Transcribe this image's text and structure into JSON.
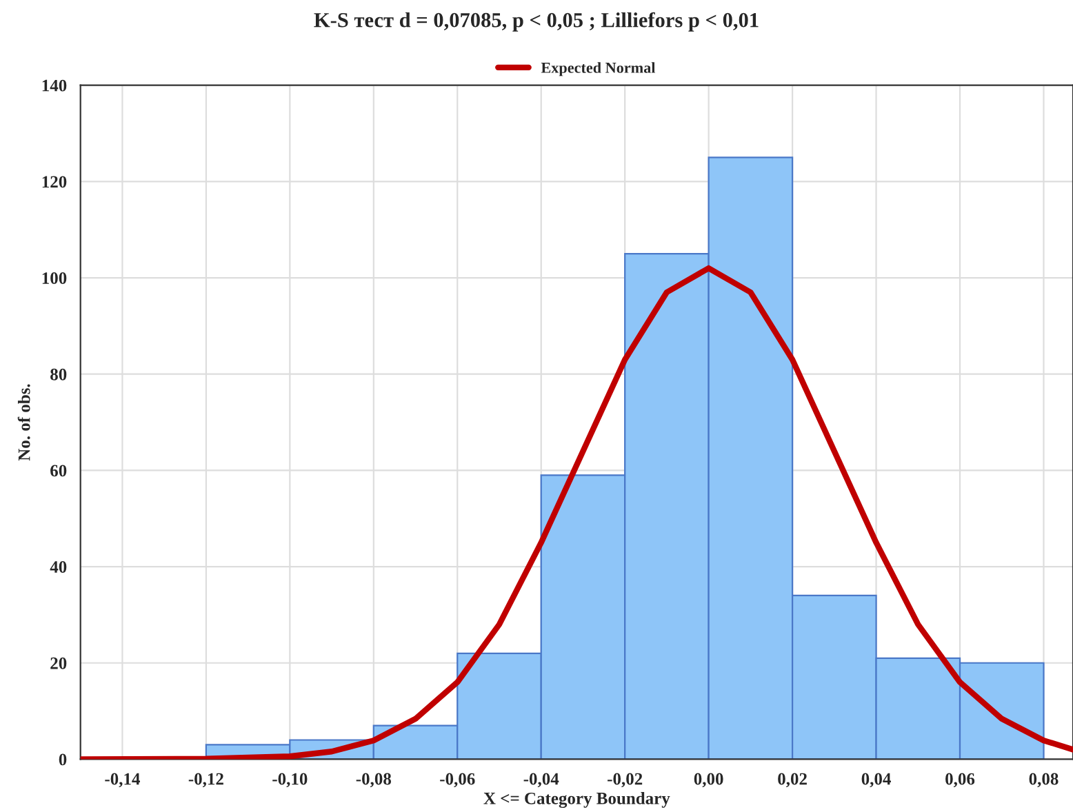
{
  "chart_data": {
    "type": "histogram",
    "title": "K-S тест d = 0,07085, p < 0,05 ; Lilliefors p < 0,01",
    "xlabel": "X <= Category Boundary",
    "ylabel": "No. of obs.",
    "bins": [
      -0.12,
      -0.1,
      -0.08,
      -0.06,
      -0.04,
      -0.02,
      0.0,
      0.02,
      0.04,
      0.06,
      0.08
    ],
    "values": [
      3,
      4,
      7,
      22,
      59,
      105,
      125,
      34,
      21,
      20
    ],
    "color": "#8ec5f8",
    "series": [
      {
        "type": "line",
        "name": "Expected Normal",
        "color": "#c00000",
        "x": [
          -0.15,
          -0.12,
          -0.1,
          -0.09,
          -0.08,
          -0.07,
          -0.06,
          -0.05,
          -0.04,
          -0.03,
          -0.02,
          -0.01,
          0.0,
          0.01,
          0.02,
          0.03,
          0.04,
          0.05,
          0.06,
          0.07,
          0.08,
          0.087
        ],
        "values": [
          0,
          0.1,
          0.6,
          1.6,
          3.9,
          8.4,
          16,
          28,
          45,
          64,
          83,
          97,
          102,
          97,
          83,
          64,
          45,
          28,
          16,
          8.4,
          3.9,
          2
        ]
      }
    ],
    "xlim": [
      -0.15,
      0.087
    ],
    "ylim": [
      0,
      140
    ],
    "xticks": [
      {
        "value": -0.14,
        "label": "-0,14"
      },
      {
        "value": -0.12,
        "label": "-0,12"
      },
      {
        "value": -0.1,
        "label": "-0,10"
      },
      {
        "value": -0.08,
        "label": "-0,08"
      },
      {
        "value": -0.06,
        "label": "-0,06"
      },
      {
        "value": -0.04,
        "label": "-0,04"
      },
      {
        "value": -0.02,
        "label": "-0,02"
      },
      {
        "value": 0.0,
        "label": "0,00"
      },
      {
        "value": 0.02,
        "label": "0,02"
      },
      {
        "value": 0.04,
        "label": "0,04"
      },
      {
        "value": 0.06,
        "label": "0,06"
      },
      {
        "value": 0.08,
        "label": "0,08"
      }
    ],
    "yticks": [
      0,
      20,
      40,
      60,
      80,
      100,
      120,
      140
    ],
    "grid": true,
    "legend": "top"
  }
}
